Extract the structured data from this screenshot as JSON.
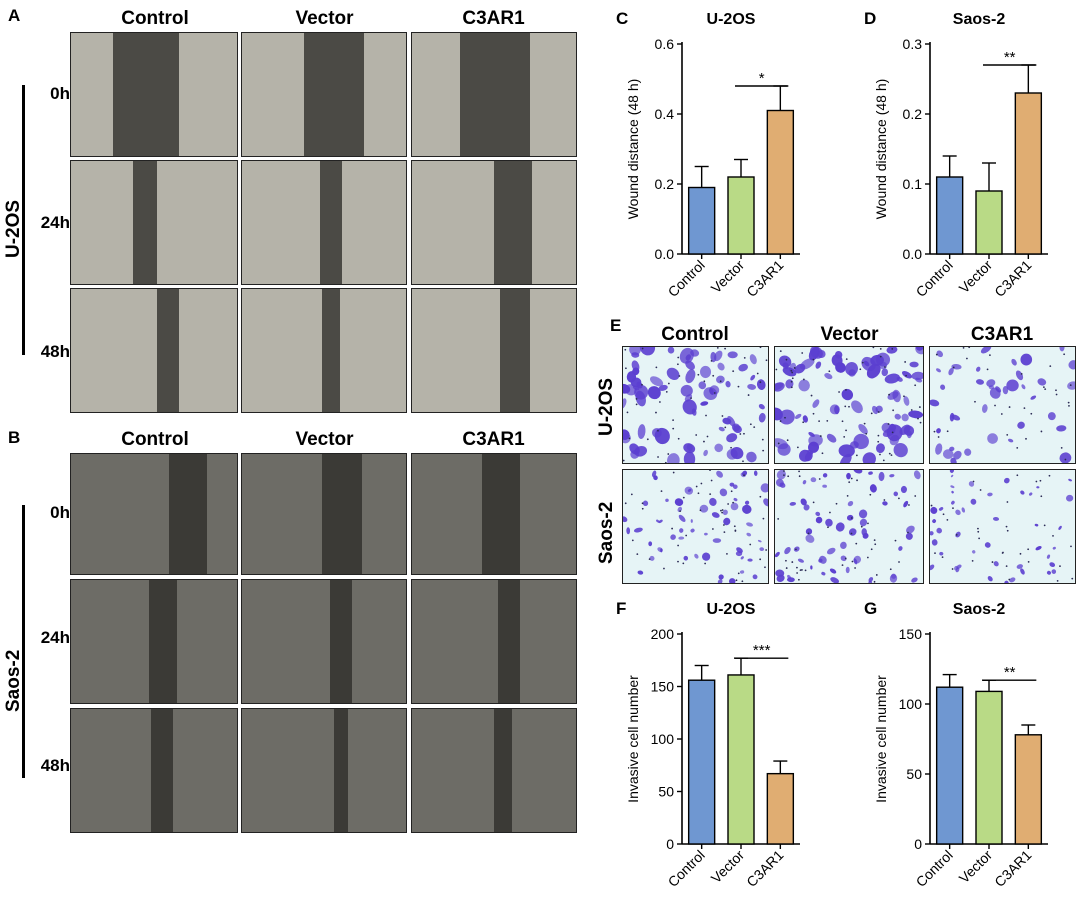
{
  "panels": {
    "A": "A",
    "B": "B",
    "C": "C",
    "D": "D",
    "E": "E",
    "F": "F",
    "G": "G"
  },
  "wound_grid": {
    "columns": [
      "Control",
      "Vector",
      "C3AR1"
    ],
    "times": [
      "0h",
      "24h",
      "48h"
    ],
    "cell_lines": [
      "U-2OS",
      "Saos-2"
    ]
  },
  "transwell": {
    "columns": [
      "Control",
      "Vector",
      "C3AR1"
    ],
    "rows": [
      "U-2OS",
      "Saos-2"
    ]
  },
  "colors": {
    "control": "#6f97d1",
    "vector": "#b9da86",
    "c3ar1": "#e0ad72",
    "stain": "#5b3fd0"
  },
  "chart_data": [
    {
      "id": "C",
      "type": "bar",
      "title": "U-2OS",
      "categories": [
        "Control",
        "Vector",
        "C3AR1"
      ],
      "values": [
        0.19,
        0.22,
        0.41
      ],
      "errors": [
        0.06,
        0.05,
        0.07
      ],
      "ylabel": "Wound distance (48 h)",
      "xlabel": "",
      "ylim": [
        0,
        0.6
      ],
      "yticks": [
        "0.0",
        "0.2",
        "0.4",
        "0.6"
      ],
      "significance": {
        "from": "Vector",
        "to": "C3AR1",
        "label": "*"
      }
    },
    {
      "id": "D",
      "type": "bar",
      "title": "Saos-2",
      "categories": [
        "Control",
        "Vector",
        "C3AR1"
      ],
      "values": [
        0.11,
        0.09,
        0.23
      ],
      "errors": [
        0.03,
        0.04,
        0.04
      ],
      "ylabel": "Wound distance (48 h)",
      "xlabel": "",
      "ylim": [
        0,
        0.3
      ],
      "yticks": [
        "0.0",
        "0.1",
        "0.2",
        "0.3"
      ],
      "significance": {
        "from": "Vector",
        "to": "C3AR1",
        "label": "**"
      }
    },
    {
      "id": "F",
      "type": "bar",
      "title": "U-2OS",
      "categories": [
        "Control",
        "Vector",
        "C3AR1"
      ],
      "values": [
        156,
        161,
        67
      ],
      "errors": [
        14,
        16,
        12
      ],
      "ylabel": "Invasive cell number",
      "xlabel": "",
      "ylim": [
        0,
        200
      ],
      "yticks": [
        "0",
        "50",
        "100",
        "150",
        "200"
      ],
      "significance": {
        "from": "Vector",
        "to": "C3AR1",
        "label": "***"
      }
    },
    {
      "id": "G",
      "type": "bar",
      "title": "Saos-2",
      "categories": [
        "Control",
        "Vector",
        "C3AR1"
      ],
      "values": [
        112,
        109,
        78
      ],
      "errors": [
        9,
        8,
        7
      ],
      "ylabel": "Invasive cell number",
      "xlabel": "",
      "ylim": [
        0,
        150
      ],
      "yticks": [
        "0",
        "50",
        "100",
        "150"
      ],
      "significance": {
        "from": "Vector",
        "to": "C3AR1",
        "label": "**"
      }
    }
  ]
}
